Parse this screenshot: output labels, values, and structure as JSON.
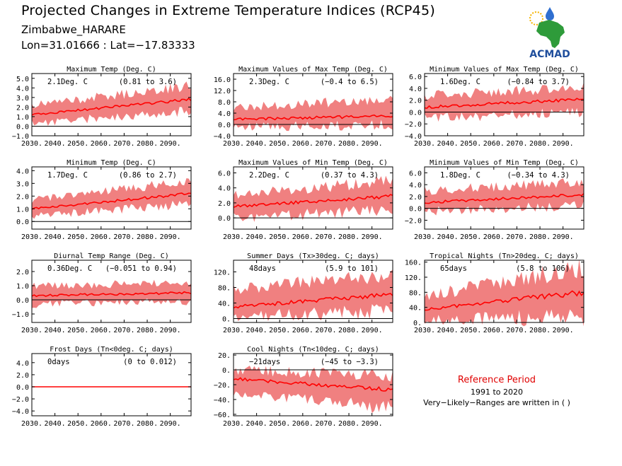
{
  "header": {
    "title": "Projected Changes in Extreme Temperature Indices (RCP45)",
    "location": "Zimbabwe_HARARE",
    "coords": "Lon=31.01666 : Lat=−17.83333"
  },
  "logo": {
    "text": "ACMAD",
    "colors": {
      "text": "#1f4e9c",
      "africa": "#2e9b3a",
      "drop": "#2f6fd0",
      "sun": "#f5b400"
    }
  },
  "reference": {
    "title": "Reference Period",
    "years": "1991 to 2020",
    "note": "Very−Likely−Ranges are written in ( )"
  },
  "colors": {
    "band": "#f08080",
    "line": "#ff0000",
    "zero": "#000000"
  },
  "chart_data": [
    {
      "type": "line",
      "title": "Maximum Temp (Deg. C)",
      "change": "2.1Deg. C",
      "range": "(0.81 to 3.6)",
      "x": [
        2030,
        2099
      ],
      "xticks": [
        "2030.",
        "2040.",
        "2050.",
        "2060.",
        "2070.",
        "2080.",
        "2090."
      ],
      "ylim": [
        -1.0,
        5.5
      ],
      "yticks": [
        "−1.0",
        "0.0",
        "1.0",
        "2.0",
        "3.0",
        "4.0",
        "5.0"
      ],
      "median": {
        "start": 1.2,
        "end": 2.8
      },
      "band": {
        "low_start": 0.3,
        "low_end": 1.6,
        "high_start": 2.2,
        "high_end": 4.2
      }
    },
    {
      "type": "line",
      "title": "Maximum Values of Max Temp (Deg. C)",
      "change": "2.3Deg. C",
      "range": "(−0.4 to 6.5)",
      "x": [
        2030,
        2099
      ],
      "xticks": [
        "2030.",
        "2040.",
        "2050.",
        "2060.",
        "2070.",
        "2080.",
        "2090."
      ],
      "ylim": [
        -4.0,
        18.0
      ],
      "yticks": [
        "−4.0",
        "0.0",
        "4.0",
        "8.0",
        "12.0",
        "16.0"
      ],
      "median": {
        "start": 1.8,
        "end": 3.0
      },
      "band": {
        "low_start": -1.0,
        "low_end": 0.0,
        "high_start": 6.0,
        "high_end": 9.0
      }
    },
    {
      "type": "line",
      "title": "Minimum Values of Max Temp (Deg. C)",
      "change": "1.6Deg. C",
      "range": "(−0.84 to 3.7)",
      "x": [
        2030,
        2099
      ],
      "xticks": [
        "2030.",
        "2040.",
        "2050.",
        "2060.",
        "2070.",
        "2080.",
        "2090."
      ],
      "ylim": [
        -4.0,
        6.5
      ],
      "yticks": [
        "−4.0",
        "−2.0",
        "0.0",
        "2.0",
        "4.0",
        "6.0"
      ],
      "median": {
        "start": 0.8,
        "end": 2.2
      },
      "band": {
        "low_start": -1.0,
        "low_end": 0.0,
        "high_start": 2.8,
        "high_end": 4.2
      }
    },
    {
      "type": "line",
      "title": "Minimum Temp (Deg. C)",
      "change": "1.7Deg. C",
      "range": "(0.86 to 2.7)",
      "x": [
        2030,
        2099
      ],
      "xticks": [
        "2030.",
        "2040.",
        "2050.",
        "2060.",
        "2070.",
        "2080.",
        "2090."
      ],
      "ylim": [
        -0.6,
        4.3
      ],
      "yticks": [
        "0.0",
        "1.0",
        "2.0",
        "3.0",
        "4.0"
      ],
      "median": {
        "start": 1.0,
        "end": 2.2
      },
      "band": {
        "low_start": 0.4,
        "low_end": 1.4,
        "high_start": 1.7,
        "high_end": 3.2
      }
    },
    {
      "type": "line",
      "title": "Maximum Values of Min Temp (Deg. C)",
      "change": "2.2Deg. C",
      "range": "(0.37 to 4.3)",
      "x": [
        2030,
        2099
      ],
      "xticks": [
        "2030.",
        "2040.",
        "2050.",
        "2060.",
        "2070.",
        "2080.",
        "2090."
      ],
      "ylim": [
        -1.5,
        6.8
      ],
      "yticks": [
        "0.0",
        "2.0",
        "4.0",
        "6.0"
      ],
      "median": {
        "start": 1.5,
        "end": 2.9
      },
      "band": {
        "low_start": 0.0,
        "low_end": 1.0,
        "high_start": 3.0,
        "high_end": 5.0
      }
    },
    {
      "type": "line",
      "title": "Minimum Values of Min Temp (Deg. C)",
      "change": "1.8Deg. C",
      "range": "(−0.34 to 4.3)",
      "x": [
        2030,
        2099
      ],
      "xticks": [
        "2030.",
        "2040.",
        "2050.",
        "2060.",
        "2070.",
        "2080.",
        "2090."
      ],
      "ylim": [
        -3.5,
        7.0
      ],
      "yticks": [
        "−2.0",
        "0.0",
        "2.0",
        "4.0",
        "6.0"
      ],
      "median": {
        "start": 1.0,
        "end": 2.3
      },
      "band": {
        "low_start": -0.5,
        "low_end": 0.5,
        "high_start": 3.0,
        "high_end": 4.5
      }
    },
    {
      "type": "line",
      "title": "Diurnal Temp Range (Deg. C)",
      "change": "0.36Deg. C",
      "range": "(−0.051 to 0.94)",
      "x": [
        2030,
        2099
      ],
      "xticks": [
        "2030.",
        "2040.",
        "2050.",
        "2060.",
        "2070.",
        "2080.",
        "2090."
      ],
      "ylim": [
        -1.6,
        2.8
      ],
      "yticks": [
        "−1.0",
        "0.0",
        "1.0",
        "2.0"
      ],
      "median": {
        "start": 0.3,
        "end": 0.5
      },
      "band": {
        "low_start": -0.3,
        "low_end": -0.1,
        "high_start": 1.0,
        "high_end": 1.2
      }
    },
    {
      "type": "line",
      "title": "Summer Days (Tx>30deg. C; days)",
      "change": "48days",
      "range": "(5.9 to 101)",
      "x": [
        2030,
        2099
      ],
      "xticks": [
        "2030.",
        "2040.",
        "2050.",
        "2060.",
        "2070.",
        "2080.",
        "2090."
      ],
      "ylim": [
        -10,
        150
      ],
      "yticks": [
        "0.",
        "40.",
        "80.",
        "120."
      ],
      "median": {
        "start": 30,
        "end": 62
      },
      "band": {
        "low_start": 5,
        "low_end": 20,
        "high_start": 75,
        "high_end": 115
      }
    },
    {
      "type": "line",
      "title": "Tropical Nights (Tn>20deg. C; days)",
      "change": "65days",
      "range": "(5.8 to 106)",
      "x": [
        2030,
        2099
      ],
      "xticks": [
        "2030.",
        "2040.",
        "2050.",
        "2060.",
        "2070.",
        "2080.",
        "2090."
      ],
      "ylim": [
        0,
        165
      ],
      "yticks": [
        "0.",
        "40.",
        "80.",
        "120.",
        "160."
      ],
      "median": {
        "start": 35,
        "end": 80
      },
      "band": {
        "low_start": 8,
        "low_end": 12,
        "high_start": 70,
        "high_end": 145
      }
    },
    {
      "type": "line",
      "title": "Frost Days (Tn<0deg. C; days)",
      "change": "0days",
      "range": "(0 to 0.012)",
      "x": [
        2030,
        2099
      ],
      "xticks": [
        "2030.",
        "2040.",
        "2050.",
        "2060.",
        "2070.",
        "2080.",
        "2090."
      ],
      "ylim": [
        -4.8,
        5.5
      ],
      "yticks": [
        "−4.0",
        "−2.0",
        "0.0",
        "2.0",
        "4.0"
      ],
      "median": {
        "start": 0.0,
        "end": 0.0
      },
      "band": {
        "low_start": 0.0,
        "low_end": 0.0,
        "high_start": 0.0,
        "high_end": 0.0
      }
    },
    {
      "type": "line",
      "title": "Cool Nights (Tn<10deg. C; days)",
      "change": "−21days",
      "range": "(−45 to −3.3)",
      "x": [
        2030,
        2099
      ],
      "xticks": [
        "2030.",
        "2040.",
        "2050.",
        "2060.",
        "2070.",
        "2080.",
        "2090."
      ],
      "ylim": [
        -62,
        22
      ],
      "yticks": [
        "−60.",
        "−40.",
        "−20.",
        "0.",
        "20."
      ],
      "median": {
        "start": -12,
        "end": -27
      },
      "band": {
        "low_start": -30,
        "low_end": -52,
        "high_start": 0,
        "high_end": -8
      }
    }
  ]
}
